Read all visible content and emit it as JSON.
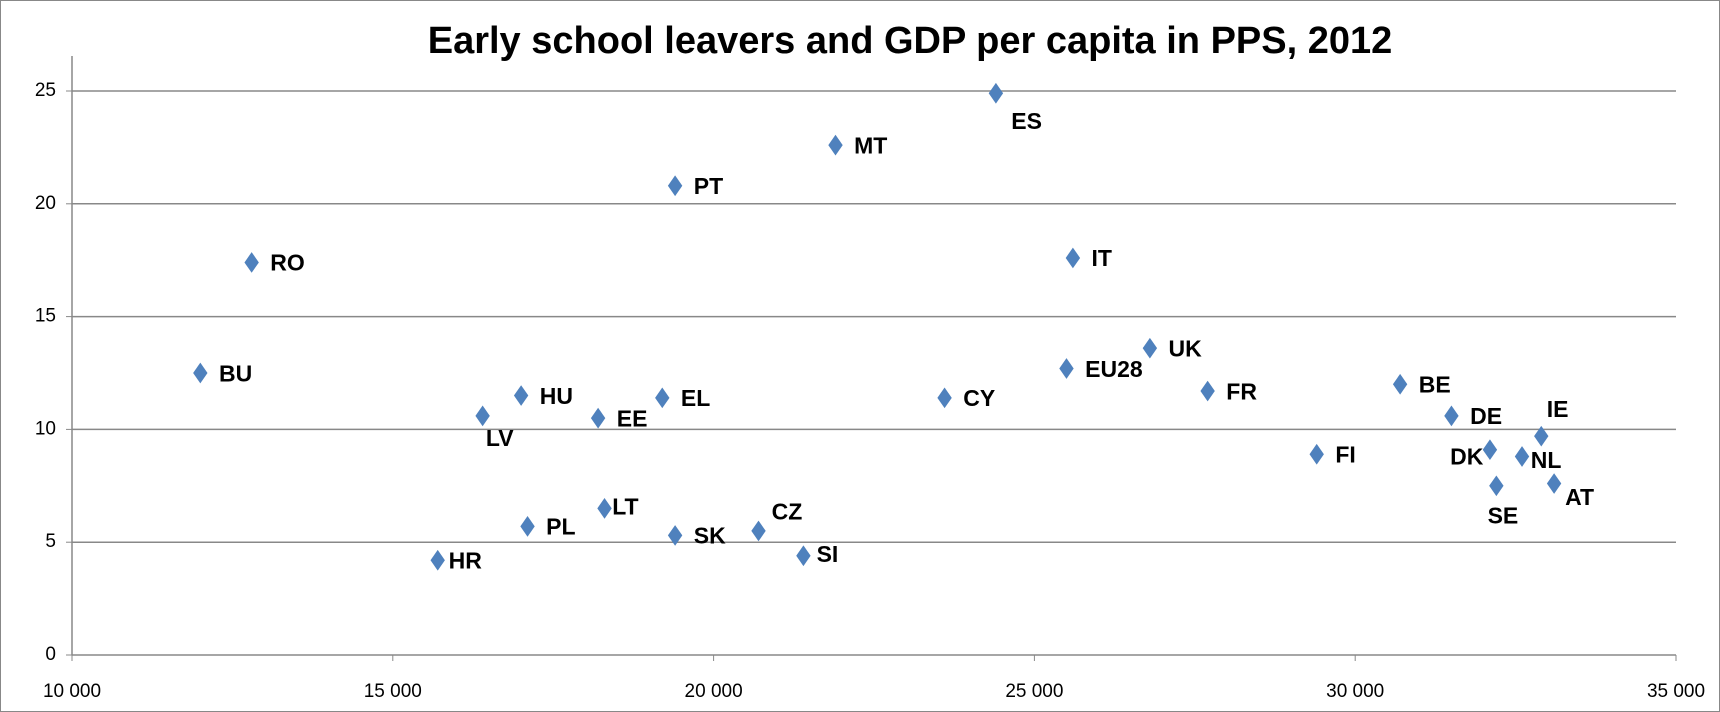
{
  "chart_data": {
    "type": "scatter",
    "title": "Early school leavers and GDP per capita in PPS, 2012",
    "labels": [
      "RO",
      "BU",
      "HR",
      "LV",
      "HU",
      "PL",
      "EE",
      "LT",
      "EL",
      "PT",
      "SK",
      "CZ",
      "SI",
      "MT",
      "CY",
      "ES",
      "EU28",
      "IT",
      "UK",
      "FR",
      "FI",
      "BE",
      "DE",
      "DK",
      "SE",
      "NL",
      "IE",
      "AT"
    ],
    "x": [
      12800,
      12000,
      15700,
      16400,
      17000,
      17100,
      18200,
      18300,
      19200,
      19400,
      19400,
      20700,
      21400,
      21900,
      23600,
      24400,
      25500,
      25600,
      26800,
      27700,
      29400,
      30700,
      31500,
      32100,
      32200,
      32600,
      32900,
      33100
    ],
    "values": [
      17.4,
      12.5,
      4.2,
      10.6,
      11.5,
      5.7,
      10.5,
      6.5,
      11.4,
      20.8,
      5.3,
      5.5,
      4.4,
      22.6,
      11.4,
      24.9,
      12.7,
      17.6,
      13.6,
      11.7,
      8.9,
      12.0,
      10.6,
      9.1,
      7.5,
      8.8,
      9.7,
      7.6
    ],
    "color": "#4f81bd",
    "xlim": [
      10000,
      35000
    ],
    "xticks": [
      {
        "value": 10000,
        "label": "10 000"
      },
      {
        "value": 15000,
        "label": "15 000"
      },
      {
        "value": 20000,
        "label": "20 000"
      },
      {
        "value": 25000,
        "label": "25 000"
      },
      {
        "value": 30000,
        "label": "30 000"
      },
      {
        "value": 35000,
        "label": "35 000"
      }
    ],
    "ylim": [
      0,
      25
    ],
    "yticks": [
      0,
      5,
      10,
      15,
      20,
      25
    ],
    "grid": true
  }
}
